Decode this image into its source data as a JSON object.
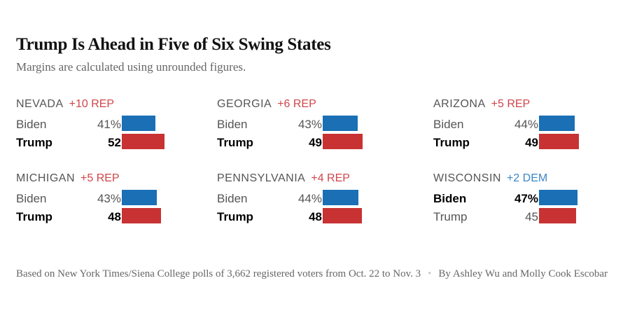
{
  "chart_data": {
    "type": "bar",
    "title": "Trump Is Ahead in Five of Six Swing States",
    "subtitle": "Margins are calculated using unrounded figures.",
    "colors": {
      "Biden": "#1a6fb5",
      "Trump": "#c83232",
      "rep_text": "#d0454a",
      "dem_text": "#3b86c4"
    },
    "states": [
      {
        "name": "NEVADA",
        "margin": "+10 REP",
        "party": "rep",
        "candidates": [
          {
            "name": "Biden",
            "value": 41,
            "label": "41%"
          },
          {
            "name": "Trump",
            "value": 52,
            "label": "52"
          }
        ],
        "leader": "Trump"
      },
      {
        "name": "GEORGIA",
        "margin": "+6 REP",
        "party": "rep",
        "candidates": [
          {
            "name": "Biden",
            "value": 43,
            "label": "43%"
          },
          {
            "name": "Trump",
            "value": 49,
            "label": "49"
          }
        ],
        "leader": "Trump"
      },
      {
        "name": "ARIZONA",
        "margin": "+5 REP",
        "party": "rep",
        "candidates": [
          {
            "name": "Biden",
            "value": 44,
            "label": "44%"
          },
          {
            "name": "Trump",
            "value": 49,
            "label": "49"
          }
        ],
        "leader": "Trump"
      },
      {
        "name": "MICHIGAN",
        "margin": "+5 REP",
        "party": "rep",
        "candidates": [
          {
            "name": "Biden",
            "value": 43,
            "label": "43%"
          },
          {
            "name": "Trump",
            "value": 48,
            "label": "48"
          }
        ],
        "leader": "Trump"
      },
      {
        "name": "PENNSYLVANIA",
        "margin": "+4 REP",
        "party": "rep",
        "candidates": [
          {
            "name": "Biden",
            "value": 44,
            "label": "44%"
          },
          {
            "name": "Trump",
            "value": 48,
            "label": "48"
          }
        ],
        "leader": "Trump"
      },
      {
        "name": "WISCONSIN",
        "margin": "+2 DEM",
        "party": "dem",
        "candidates": [
          {
            "name": "Biden",
            "value": 47,
            "label": "47%"
          },
          {
            "name": "Trump",
            "value": 45,
            "label": "45"
          }
        ],
        "leader": "Biden"
      }
    ]
  },
  "footer": {
    "source": "Based on New York Times/Siena College polls of 3,662 registered voters from Oct. 22 to Nov. 3",
    "separator": "•",
    "byline": "By Ashley Wu and Molly Cook Escobar"
  }
}
